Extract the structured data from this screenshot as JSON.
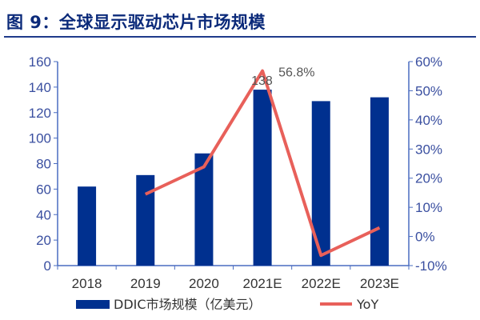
{
  "title": "图 9：全球显示驱动芯片市场规模",
  "chart_data": {
    "type": "bar+line",
    "categories": [
      "2018",
      "2019",
      "2020",
      "2021E",
      "2022E",
      "2023E"
    ],
    "series": [
      {
        "name": "DDIC市场规模（亿美元）",
        "type": "bar",
        "axis": "left",
        "color": "#00308f",
        "values": [
          62,
          71,
          88,
          138,
          129,
          132
        ]
      },
      {
        "name": "YoY",
        "type": "line",
        "axis": "right",
        "color": "#e8605a",
        "values": [
          null,
          14.5,
          23.9,
          56.8,
          -6.5,
          3.0
        ]
      }
    ],
    "left_axis": {
      "ylim": [
        0,
        160
      ],
      "ticks": [
        "0",
        "20",
        "40",
        "60",
        "80",
        "100",
        "120",
        "140",
        "160"
      ]
    },
    "right_axis": {
      "ylim": [
        -10,
        60
      ],
      "ticks": [
        "-10%",
        "0%",
        "10%",
        "20%",
        "30%",
        "40%",
        "50%",
        "60%"
      ]
    },
    "data_labels": {
      "bar_2021E": "138",
      "line_2021E": "56.8%"
    },
    "legend": "bottom",
    "grid": false
  }
}
